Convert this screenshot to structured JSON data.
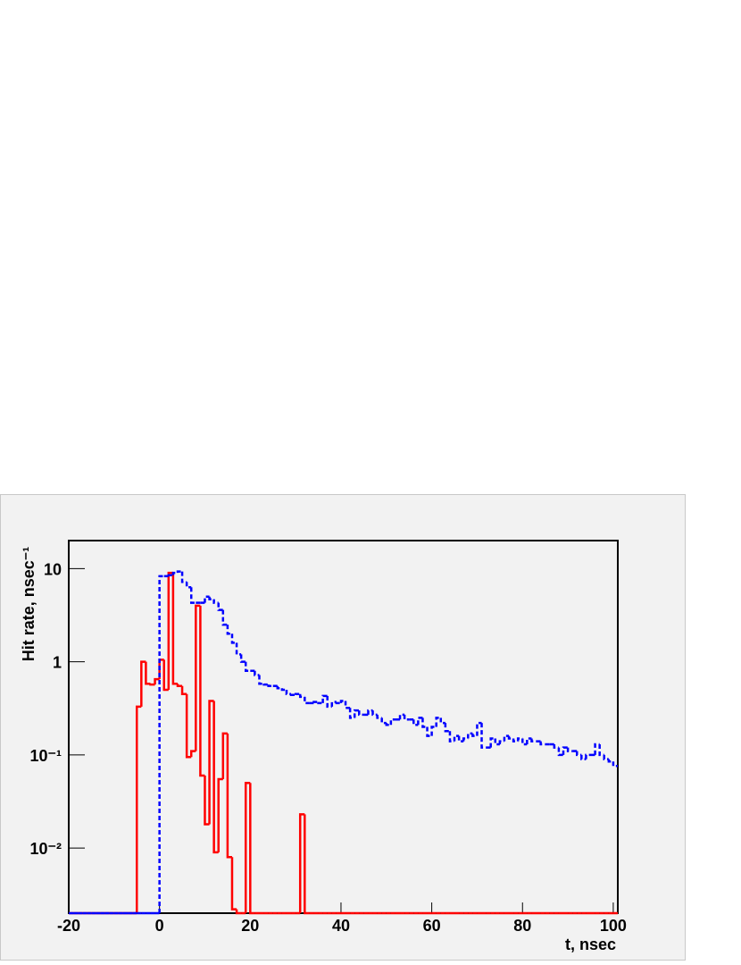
{
  "chart_data": {
    "type": "histogram",
    "x_label": "t,  nsec",
    "y_label": "Hit rate, nsec⁻¹",
    "log_y": true,
    "xlim": [
      -20,
      101
    ],
    "ylim": [
      0.002,
      20
    ],
    "xticks": [
      -20,
      0,
      20,
      40,
      60,
      80,
      100
    ],
    "yticks": [
      {
        "value": 0.01,
        "label": "10⁻²"
      },
      {
        "value": 0.1,
        "label": "10⁻¹"
      },
      1,
      10
    ],
    "bins": [
      -20,
      -19,
      -18,
      -17,
      -16,
      -15,
      -14,
      -13,
      -12,
      -11,
      -10,
      -9,
      -8,
      -7,
      -6,
      -5,
      -4,
      -3,
      -2,
      -1,
      0,
      1,
      2,
      3,
      4,
      5,
      6,
      7,
      8,
      9,
      10,
      11,
      12,
      13,
      14,
      15,
      16,
      17,
      18,
      19,
      20,
      21,
      22,
      23,
      24,
      25,
      26,
      27,
      28,
      29,
      30,
      31,
      32,
      33,
      34,
      35,
      36,
      37,
      38,
      39,
      40,
      41,
      42,
      43,
      44,
      45,
      46,
      47,
      48,
      49,
      50,
      51,
      52,
      53,
      54,
      55,
      56,
      57,
      58,
      59,
      60,
      61,
      62,
      63,
      64,
      65,
      66,
      67,
      68,
      69,
      70,
      71,
      72,
      73,
      74,
      75,
      76,
      77,
      78,
      79,
      80,
      81,
      82,
      83,
      84,
      85,
      86,
      87,
      88,
      89,
      90,
      91,
      92,
      93,
      94,
      95,
      96,
      97,
      98,
      99,
      100,
      101
    ],
    "series": [
      {
        "color": "#ff0000",
        "style": "solid",
        "values": [
          0,
          0,
          0,
          0,
          0,
          0,
          0,
          0,
          0,
          0,
          0,
          0,
          0,
          0,
          0,
          0.33,
          1.0,
          0.58,
          0.57,
          0.65,
          1.05,
          0.5,
          9,
          0.58,
          0.55,
          0.45,
          0.095,
          0.11,
          4,
          0.06,
          0.018,
          0.38,
          0.009,
          0.055,
          0.17,
          0.008,
          0.0022,
          0,
          0,
          0.05,
          0,
          0,
          0,
          0,
          0,
          0,
          0,
          0,
          0,
          0,
          0,
          0.023,
          0,
          0,
          0,
          0,
          0,
          0,
          0,
          0,
          0,
          0,
          0,
          0,
          0,
          0,
          0,
          0,
          0,
          0,
          0,
          0,
          0,
          0,
          0,
          0,
          0,
          0,
          0,
          0,
          0,
          0,
          0,
          0,
          0,
          0,
          0,
          0,
          0,
          0,
          0,
          0,
          0,
          0,
          0,
          0,
          0,
          0,
          0,
          0,
          0,
          0,
          0,
          0,
          0,
          0,
          0,
          0,
          0,
          0,
          0,
          0,
          0,
          0,
          0,
          0,
          0,
          0,
          0,
          0,
          0
        ]
      },
      {
        "color": "#0000ff",
        "style": "dashed",
        "values": [
          0,
          0,
          0,
          0,
          0,
          0,
          0,
          0,
          0,
          0,
          0,
          0,
          0,
          0,
          0,
          0,
          0,
          0,
          0,
          0,
          8.3,
          8.3,
          8.5,
          9,
          9.3,
          7.2,
          6.3,
          4.3,
          4.3,
          4.3,
          5,
          4.7,
          4.3,
          3.6,
          2.5,
          2,
          1.6,
          1.2,
          1,
          0.8,
          0.8,
          0.72,
          0.58,
          0.57,
          0.55,
          0.55,
          0.52,
          0.5,
          0.45,
          0.44,
          0.45,
          0.42,
          0.36,
          0.36,
          0.37,
          0.36,
          0.43,
          0.33,
          0.37,
          0.36,
          0.38,
          0.32,
          0.25,
          0.3,
          0.27,
          0.27,
          0.3,
          0.27,
          0.25,
          0.22,
          0.21,
          0.24,
          0.24,
          0.27,
          0.24,
          0.24,
          0.21,
          0.25,
          0.2,
          0.16,
          0.2,
          0.25,
          0.22,
          0.18,
          0.14,
          0.16,
          0.14,
          0.15,
          0.17,
          0.16,
          0.22,
          0.12,
          0.12,
          0.15,
          0.13,
          0.14,
          0.16,
          0.15,
          0.14,
          0.15,
          0.13,
          0.15,
          0.14,
          0.14,
          0.13,
          0.13,
          0.13,
          0.12,
          0.1,
          0.12,
          0.11,
          0.11,
          0.1,
          0.09,
          0.1,
          0.1,
          0.13,
          0.1,
          0.09,
          0.085,
          0.076
        ]
      }
    ]
  }
}
